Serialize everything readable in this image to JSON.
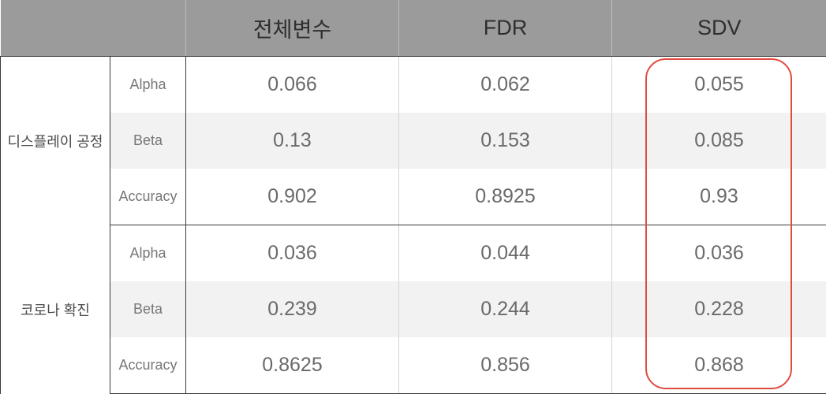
{
  "header": {
    "corner": "",
    "col1": "전체변수",
    "col2": "FDR",
    "col3": "SDV"
  },
  "groups": [
    {
      "name": "디스플레이 공정",
      "rows": [
        {
          "metric": "Alpha",
          "v1": "0.066",
          "v2": "0.062",
          "v3": "0.055"
        },
        {
          "metric": "Beta",
          "v1": "0.13",
          "v2": "0.153",
          "v3": "0.085"
        },
        {
          "metric": "Accuracy",
          "v1": "0.902",
          "v2": "0.8925",
          "v3": "0.93"
        }
      ]
    },
    {
      "name": "코로나 확진",
      "rows": [
        {
          "metric": "Alpha",
          "v1": "0.036",
          "v2": "0.044",
          "v3": "0.036"
        },
        {
          "metric": "Beta",
          "v1": "0.239",
          "v2": "0.244",
          "v3": "0.228"
        },
        {
          "metric": "Accuracy",
          "v1": "0.8625",
          "v2": "0.856",
          "v3": "0.868"
        }
      ]
    }
  ],
  "colors": {
    "header_bg": "#9b9b9b",
    "shade": "#f2f2f2",
    "highlight_border": "#e04b3f"
  }
}
